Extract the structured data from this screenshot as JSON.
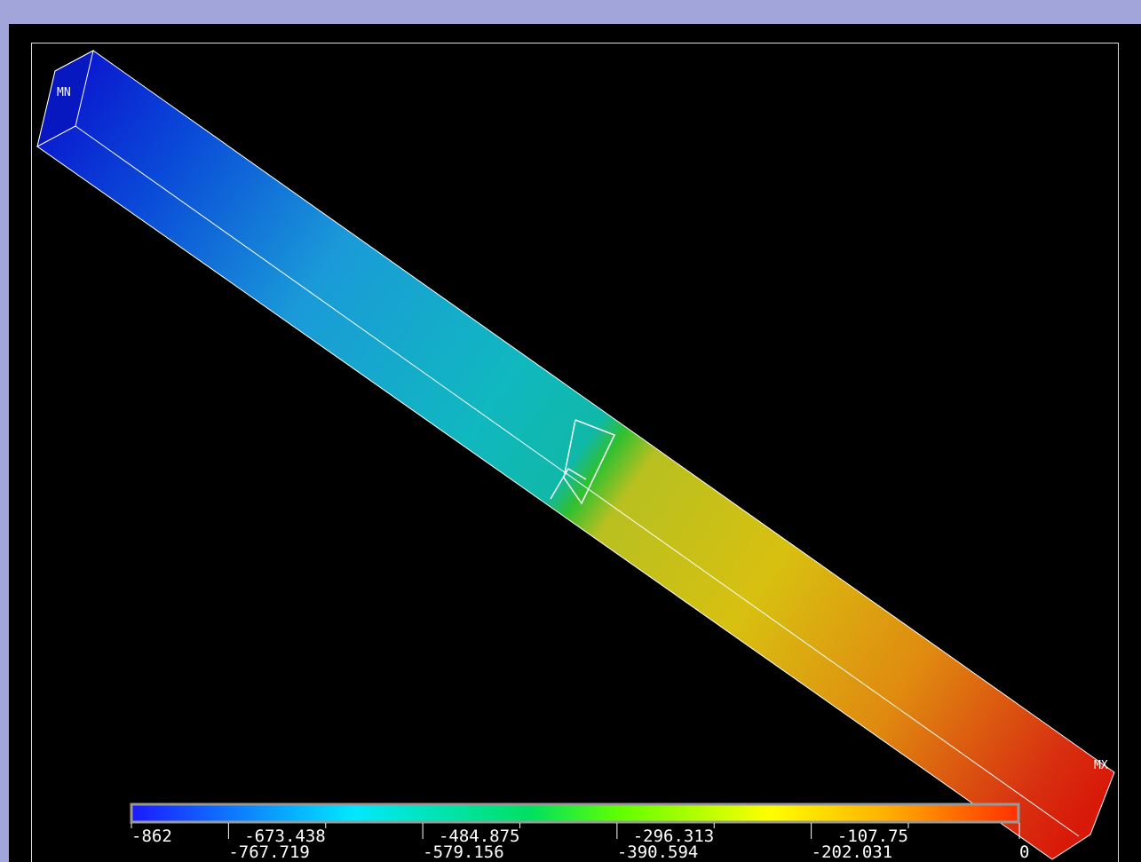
{
  "labels": {
    "min": "MN",
    "max": "MX"
  },
  "legend": {
    "ticks": [
      -862,
      -767.719,
      -673.438,
      -579.156,
      -484.875,
      -390.594,
      -296.313,
      -202.031,
      -107.75,
      0
    ]
  }
}
